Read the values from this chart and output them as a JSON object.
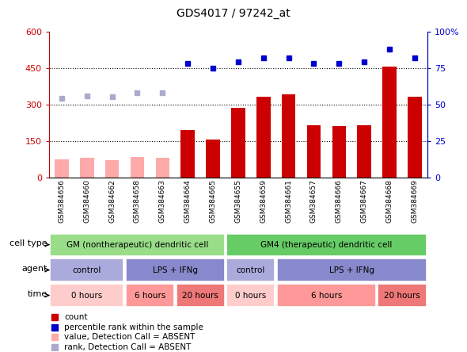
{
  "title": "GDS4017 / 97242_at",
  "samples": [
    "GSM384656",
    "GSM384660",
    "GSM384662",
    "GSM384658",
    "GSM384663",
    "GSM384664",
    "GSM384665",
    "GSM384655",
    "GSM384659",
    "GSM384661",
    "GSM384657",
    "GSM384666",
    "GSM384667",
    "GSM384668",
    "GSM384669"
  ],
  "bar_values": [
    75,
    80,
    72,
    85,
    82,
    195,
    155,
    285,
    330,
    340,
    215,
    210,
    215,
    455,
    330
  ],
  "bar_absent": [
    true,
    true,
    true,
    true,
    true,
    false,
    false,
    false,
    false,
    false,
    false,
    false,
    false,
    false,
    false
  ],
  "rank_values": [
    54,
    56,
    55,
    58,
    58,
    78,
    75,
    79,
    82,
    82,
    78,
    78,
    79,
    88,
    82
  ],
  "rank_absent": [
    true,
    true,
    true,
    true,
    true,
    false,
    false,
    false,
    false,
    false,
    false,
    false,
    false,
    false,
    false
  ],
  "ylim_left": [
    0,
    600
  ],
  "ylim_right": [
    0,
    100
  ],
  "yticks_left": [
    0,
    150,
    300,
    450,
    600
  ],
  "yticks_right": [
    0,
    25,
    50,
    75,
    100
  ],
  "ytick_labels_right": [
    "0",
    "25",
    "50",
    "75",
    "100%"
  ],
  "bar_color_present": "#cc0000",
  "bar_color_absent": "#ffaaaa",
  "rank_color_present": "#0000cc",
  "rank_color_absent": "#aaaacc",
  "cell_type_groups": [
    {
      "label": "GM (nontherapeutic) dendritic cell",
      "start": 0,
      "end": 7,
      "color": "#99dd88"
    },
    {
      "label": "GM4 (therapeutic) dendritic cell",
      "start": 7,
      "end": 15,
      "color": "#66cc66"
    }
  ],
  "agent_groups": [
    {
      "label": "control",
      "start": 0,
      "end": 3,
      "color": "#aaaadd"
    },
    {
      "label": "LPS + IFNg",
      "start": 3,
      "end": 7,
      "color": "#8888cc"
    },
    {
      "label": "control",
      "start": 7,
      "end": 9,
      "color": "#aaaadd"
    },
    {
      "label": "LPS + IFNg",
      "start": 9,
      "end": 15,
      "color": "#8888cc"
    }
  ],
  "time_groups": [
    {
      "label": "0 hours",
      "start": 0,
      "end": 3,
      "color": "#ffcccc"
    },
    {
      "label": "6 hours",
      "start": 3,
      "end": 5,
      "color": "#ff9999"
    },
    {
      "label": "20 hours",
      "start": 5,
      "end": 7,
      "color": "#ee7777"
    },
    {
      "label": "0 hours",
      "start": 7,
      "end": 9,
      "color": "#ffcccc"
    },
    {
      "label": "6 hours",
      "start": 9,
      "end": 13,
      "color": "#ff9999"
    },
    {
      "label": "20 hours",
      "start": 13,
      "end": 15,
      "color": "#ee7777"
    }
  ],
  "legend_items": [
    {
      "label": "count",
      "color": "#cc0000"
    },
    {
      "label": "percentile rank within the sample",
      "color": "#0000cc"
    },
    {
      "label": "value, Detection Call = ABSENT",
      "color": "#ffaaaa"
    },
    {
      "label": "rank, Detection Call = ABSENT",
      "color": "#aaaacc"
    }
  ],
  "background_color": "#ffffff",
  "dotted_lines": [
    150,
    300,
    450
  ]
}
